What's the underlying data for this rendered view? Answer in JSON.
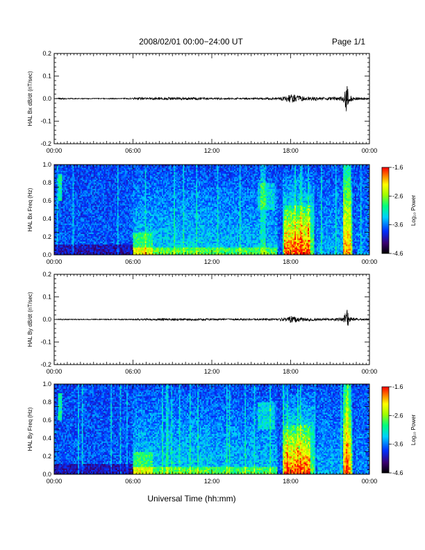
{
  "header": {
    "title": "2008/02/01   00:00−24:00 UT",
    "page": "Page 1/1"
  },
  "xlabel": "Universal Time (hh:mm)",
  "colorbar": {
    "label": "Log₁₀ Power",
    "ticks": [
      "-1.6",
      "-2.6",
      "-3.6",
      "-4.6"
    ],
    "tick_values": [
      -1.6,
      -2.6,
      -3.6,
      -4.6
    ],
    "range": [
      -4.6,
      -1.6
    ],
    "colormap": [
      "#000000",
      "#3a0070",
      "#0030ff",
      "#00d0ff",
      "#00ff80",
      "#a0ff00",
      "#ffff00",
      "#ff8000",
      "#ff0000"
    ]
  },
  "chart_data": [
    {
      "type": "line",
      "ylabel": "HAL Bx dB/dt (nT/sec)",
      "ylim": [
        -0.2,
        0.2
      ],
      "yticks": [
        "0.2",
        "0.1",
        "0.0",
        "-0.1",
        "-0.2"
      ],
      "ytick_values": [
        0.2,
        0.1,
        0.0,
        -0.1,
        -0.2
      ],
      "xlim": [
        "00:00",
        "24:00"
      ],
      "xticks": [
        "00:00",
        "06:00",
        "12:00",
        "18:00",
        "00:00"
      ],
      "grid": false,
      "series": [
        {
          "x": [
            "00:00",
            "00:30",
            "01:00",
            "02:00",
            "03:00",
            "04:00",
            "05:00",
            "06:00",
            "06:30",
            "07:00",
            "08:00",
            "09:00",
            "10:00",
            "11:00",
            "12:00",
            "13:00",
            "14:00",
            "15:00",
            "16:00",
            "17:00",
            "17:30",
            "18:00",
            "18:15",
            "18:30",
            "19:00",
            "20:00",
            "21:00",
            "22:00",
            "22:15",
            "22:30",
            "23:00",
            "24:00"
          ],
          "y": [
            0.0,
            0.004,
            0.002,
            0.002,
            0.002,
            0.002,
            0.002,
            0.003,
            0.006,
            0.005,
            0.006,
            0.006,
            0.006,
            0.006,
            0.004,
            0.004,
            0.004,
            0.004,
            0.004,
            0.006,
            0.01,
            0.02,
            0.018,
            0.014,
            0.01,
            0.008,
            0.006,
            0.01,
            0.065,
            0.014,
            0.006,
            0.004
          ]
        }
      ]
    },
    {
      "type": "heatmap",
      "ylabel": "HAL Bx Freq (Hz)",
      "ylim": [
        0.0,
        1.0
      ],
      "yticks": [
        "1.0",
        "0.8",
        "0.6",
        "0.4",
        "0.2",
        "0.0"
      ],
      "ytick_values": [
        1.0,
        0.8,
        0.6,
        0.4,
        0.2,
        0.0
      ],
      "xlim": [
        "00:00",
        "24:00"
      ],
      "xticks": [
        "00:00",
        "06:00",
        "12:00",
        "18:00",
        "00:00"
      ],
      "value_range": [
        -4.6,
        -1.6
      ]
    },
    {
      "type": "line",
      "ylabel": "HAL By dB/dt (nT/sec)",
      "ylim": [
        -0.2,
        0.2
      ],
      "yticks": [
        "0.2",
        "0.1",
        "0.0",
        "-0.1",
        "-0.2"
      ],
      "ytick_values": [
        0.2,
        0.1,
        0.0,
        -0.1,
        -0.2
      ],
      "xlim": [
        "00:00",
        "24:00"
      ],
      "xticks": [
        "00:00",
        "06:00",
        "12:00",
        "18:00",
        "00:00"
      ],
      "grid": false,
      "series": [
        {
          "x": [
            "00:00",
            "00:30",
            "01:00",
            "02:00",
            "03:00",
            "04:00",
            "05:00",
            "06:00",
            "06:30",
            "07:00",
            "08:00",
            "09:00",
            "10:00",
            "11:00",
            "12:00",
            "13:00",
            "14:00",
            "15:00",
            "16:00",
            "17:00",
            "17:30",
            "18:00",
            "18:15",
            "18:30",
            "19:00",
            "20:00",
            "21:00",
            "22:00",
            "22:15",
            "22:30",
            "23:00",
            "24:00"
          ],
          "y": [
            0.0,
            0.003,
            0.002,
            0.002,
            0.002,
            0.002,
            0.002,
            0.003,
            0.004,
            0.004,
            0.005,
            0.005,
            0.005,
            0.005,
            0.004,
            0.004,
            0.004,
            0.004,
            0.004,
            0.005,
            0.008,
            0.016,
            0.014,
            0.012,
            0.008,
            0.006,
            0.005,
            0.008,
            0.05,
            0.012,
            0.005,
            0.003
          ]
        }
      ]
    },
    {
      "type": "heatmap",
      "ylabel": "HAL By Freq (Hz)",
      "ylim": [
        0.0,
        1.0
      ],
      "yticks": [
        "1.0",
        "0.8",
        "0.6",
        "0.4",
        "0.2",
        "0.0"
      ],
      "ytick_values": [
        1.0,
        0.8,
        0.6,
        0.4,
        0.2,
        0.0
      ],
      "xlim": [
        "00:00",
        "24:00"
      ],
      "xticks": [
        "00:00",
        "06:00",
        "12:00",
        "18:00",
        "00:00"
      ],
      "value_range": [
        -4.6,
        -1.6
      ]
    }
  ]
}
